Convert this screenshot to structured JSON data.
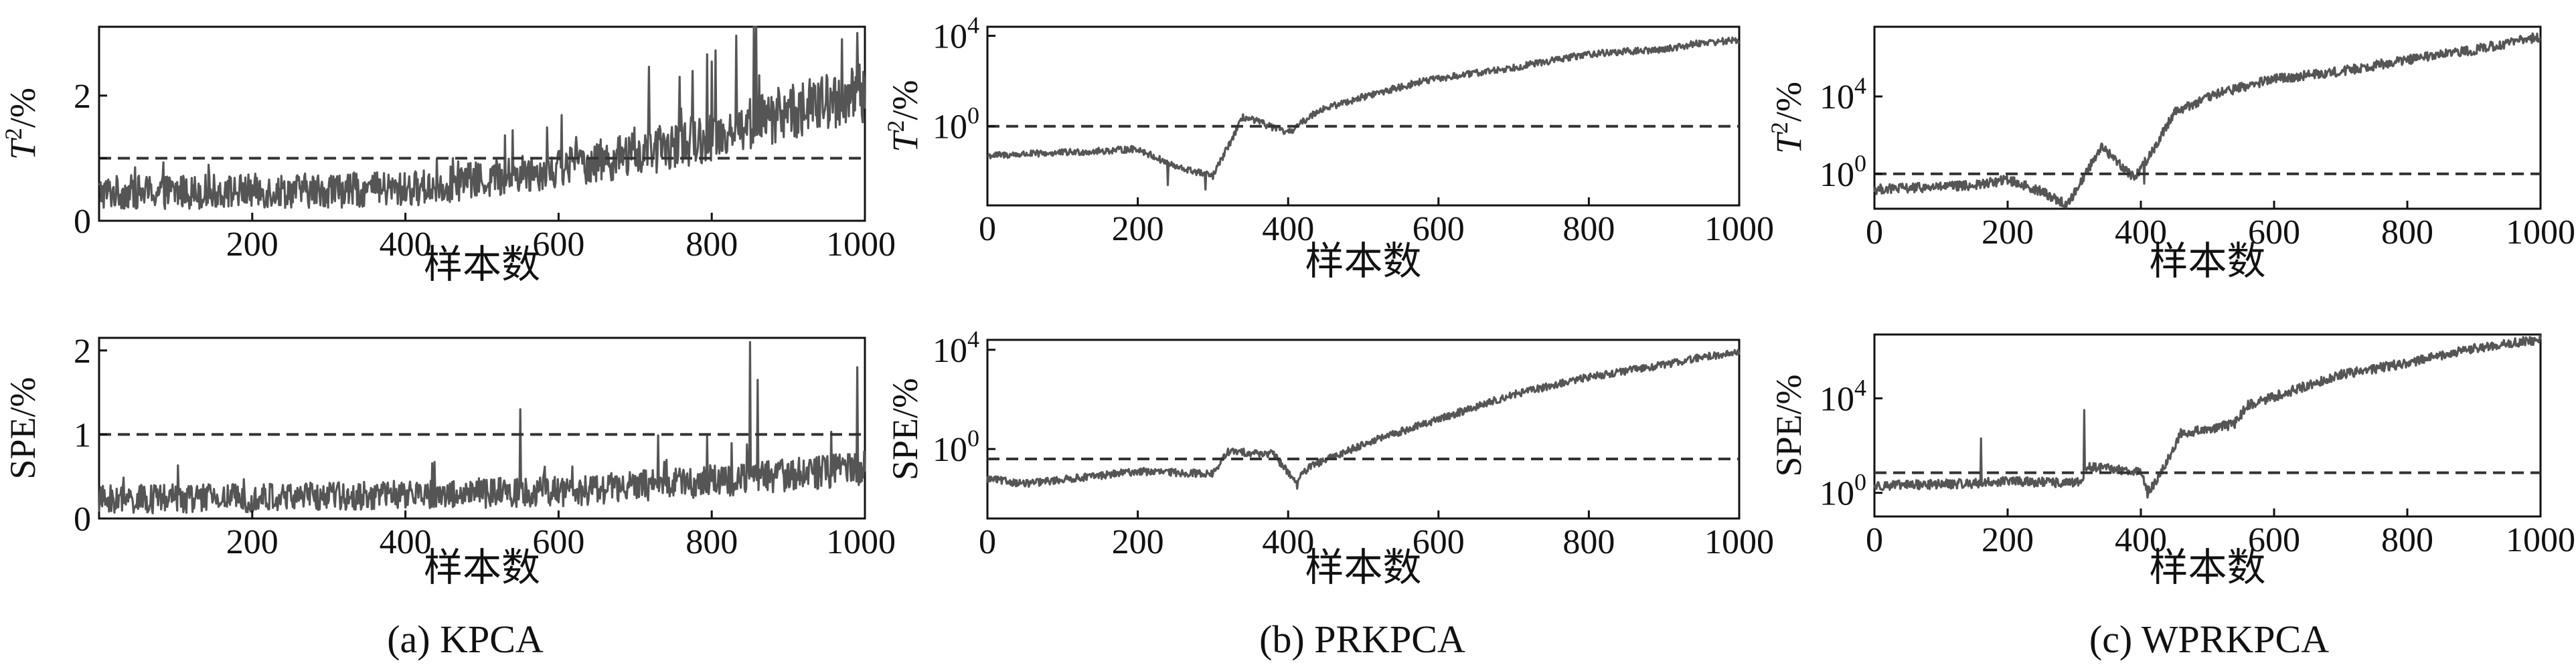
{
  "chart_data": [
    {
      "id": "a-top",
      "type": "line",
      "ylabel": "T²/%",
      "xlabel": "样本数",
      "xlim": [
        0,
        1000
      ],
      "ylim": [
        0,
        3.1
      ],
      "yscale": "linear",
      "xticks": [
        200,
        400,
        600,
        800,
        1000
      ],
      "xticklabels": [
        "200",
        "400",
        "600",
        "800",
        "1000"
      ],
      "yticks": [
        0,
        1,
        2
      ],
      "yticklabels": [
        "0",
        "",
        "2"
      ],
      "threshold": 1.0,
      "trend": [
        [
          0,
          0.45
        ],
        [
          400,
          0.5
        ],
        [
          500,
          0.65
        ],
        [
          600,
          0.85
        ],
        [
          700,
          1.05
        ],
        [
          800,
          1.35
        ],
        [
          900,
          1.75
        ],
        [
          1000,
          2.0
        ]
      ],
      "noise": 0.35,
      "spikes": [
        [
          855,
          3.1
        ],
        [
          970,
          2.9
        ],
        [
          990,
          3.0
        ]
      ],
      "series": [
        {
          "values": []
        }
      ]
    },
    {
      "id": "a-bottom",
      "type": "line",
      "ylabel": "SPE/%",
      "xlabel": "样本数",
      "xlim": [
        0,
        1000
      ],
      "ylim": [
        0,
        2.15
      ],
      "yscale": "linear",
      "xticks": [
        200,
        400,
        600,
        800,
        1000
      ],
      "xticklabels": [
        "200",
        "400",
        "600",
        "800",
        "1000"
      ],
      "yticks": [
        0,
        1,
        2
      ],
      "yticklabels": [
        "0",
        "1",
        "2"
      ],
      "threshold": 1.0,
      "trend": [
        [
          0,
          0.22
        ],
        [
          400,
          0.28
        ],
        [
          600,
          0.32
        ],
        [
          800,
          0.45
        ],
        [
          1000,
          0.6
        ]
      ],
      "noise": 0.25,
      "spikes": [
        [
          850,
          2.1
        ],
        [
          990,
          1.8
        ],
        [
          550,
          1.3
        ],
        [
          860,
          1.65
        ]
      ],
      "series": [
        {
          "values": []
        }
      ]
    },
    {
      "id": "b-top",
      "type": "line",
      "ylabel": "T²/%",
      "xlabel": "样本数",
      "xlim": [
        0,
        1000
      ],
      "ylim": [
        -3.5,
        4.4
      ],
      "yscale": "log10",
      "xticks": [
        0,
        200,
        400,
        600,
        800,
        1000
      ],
      "xticklabels": [
        "0",
        "200",
        "400",
        "600",
        "800",
        "1000"
      ],
      "yticks": [
        0,
        4
      ],
      "yticklabels": [
        "10^0",
        "10^4"
      ],
      "threshold": 0.0,
      "trend": [
        [
          0,
          -1.3
        ],
        [
          150,
          -1.1
        ],
        [
          200,
          -1.0
        ],
        [
          250,
          -1.8
        ],
        [
          300,
          -2.2
        ],
        [
          340,
          0.4
        ],
        [
          360,
          0.2
        ],
        [
          400,
          -0.3
        ],
        [
          440,
          0.7
        ],
        [
          500,
          1.3
        ],
        [
          580,
          2.0
        ],
        [
          700,
          2.6
        ],
        [
          800,
          3.2
        ],
        [
          900,
          3.4
        ],
        [
          950,
          3.7
        ],
        [
          1000,
          3.8
        ]
      ],
      "noise": 0.15,
      "spikes": [
        [
          240,
          -2.6
        ],
        [
          290,
          -2.8
        ]
      ],
      "series": [
        {
          "values": []
        }
      ]
    },
    {
      "id": "b-bottom",
      "type": "line",
      "ylabel": "SPE/%",
      "xlabel": "样本数",
      "xlim": [
        0,
        1000
      ],
      "ylim": [
        -2.8,
        4.4
      ],
      "yscale": "log10",
      "xticks": [
        0,
        200,
        400,
        600,
        800,
        1000
      ],
      "xticklabels": [
        "0",
        "200",
        "400",
        "600",
        "800",
        "1000"
      ],
      "yticks": [
        0,
        4
      ],
      "yticklabels": [
        "10^0",
        "10^4"
      ],
      "threshold": -0.4,
      "trend": [
        [
          0,
          -1.2
        ],
        [
          50,
          -1.4
        ],
        [
          200,
          -0.9
        ],
        [
          300,
          -1.0
        ],
        [
          320,
          -0.1
        ],
        [
          380,
          -0.2
        ],
        [
          410,
          -1.3
        ],
        [
          430,
          -0.7
        ],
        [
          500,
          0.2
        ],
        [
          600,
          1.2
        ],
        [
          700,
          2.2
        ],
        [
          800,
          2.9
        ],
        [
          900,
          3.4
        ],
        [
          950,
          3.7
        ],
        [
          1000,
          3.9
        ]
      ],
      "noise": 0.15,
      "spikes": [
        [
          412,
          -1.6
        ]
      ],
      "series": [
        {
          "values": []
        }
      ]
    },
    {
      "id": "c-top",
      "type": "line",
      "ylabel": "T²/%",
      "xlabel": "样本数",
      "xlim": [
        0,
        1000
      ],
      "ylim": [
        -1.8,
        7.6
      ],
      "yscale": "log10",
      "xticks": [
        0,
        200,
        400,
        600,
        800,
        1000
      ],
      "xticklabels": [
        "0",
        "200",
        "400",
        "600",
        "800",
        "1000"
      ],
      "yticks": [
        0,
        4
      ],
      "yticklabels": [
        "10^0",
        "10^4"
      ],
      "threshold": 0.0,
      "trend": [
        [
          0,
          -0.8
        ],
        [
          150,
          -0.6
        ],
        [
          200,
          -0.3
        ],
        [
          250,
          -0.9
        ],
        [
          290,
          -1.6
        ],
        [
          340,
          1.4
        ],
        [
          360,
          0.8
        ],
        [
          390,
          -0.2
        ],
        [
          420,
          1.3
        ],
        [
          450,
          3.2
        ],
        [
          520,
          4.2
        ],
        [
          600,
          4.9
        ],
        [
          700,
          5.3
        ],
        [
          800,
          5.9
        ],
        [
          900,
          6.4
        ],
        [
          1000,
          7.1
        ]
      ],
      "noise": 0.25,
      "spikes": [
        [
          285,
          -1.7
        ],
        [
          405,
          -0.5
        ]
      ],
      "series": [
        {
          "values": []
        }
      ]
    },
    {
      "id": "c-bottom",
      "type": "line",
      "ylabel": "SPE/%",
      "xlabel": "样本数",
      "xlim": [
        0,
        1000
      ],
      "ylim": [
        -1.0,
        6.7
      ],
      "yscale": "log10",
      "xticks": [
        0,
        200,
        400,
        600,
        800,
        1000
      ],
      "xticklabels": [
        "0",
        "200",
        "400",
        "600",
        "800",
        "1000"
      ],
      "yticks": [
        0,
        4
      ],
      "yticklabels": [
        "10^0",
        "10^4"
      ],
      "threshold": 0.85,
      "trend": [
        [
          0,
          0.3
        ],
        [
          150,
          0.4
        ],
        [
          200,
          0.5
        ],
        [
          300,
          0.4
        ],
        [
          310,
          0.5
        ],
        [
          320,
          1.1
        ],
        [
          400,
          0.9
        ],
        [
          410,
          0.0
        ],
        [
          430,
          0.8
        ],
        [
          460,
          2.5
        ],
        [
          540,
          2.9
        ],
        [
          560,
          3.7
        ],
        [
          700,
          5.0
        ],
        [
          800,
          5.5
        ],
        [
          900,
          6.1
        ],
        [
          1000,
          6.5
        ]
      ],
      "noise": 0.2,
      "spikes": [
        [
          160,
          2.3
        ],
        [
          315,
          3.5
        ],
        [
          410,
          -0.2
        ],
        [
          455,
          2.3
        ]
      ],
      "series": [
        {
          "values": []
        }
      ]
    }
  ],
  "captions": [
    "(a) KPCA",
    "(b) PRKPCA",
    "(c) WPRKPCA"
  ],
  "colors": {
    "line": "#555555",
    "threshold": "#333333",
    "axis": "#111111"
  }
}
